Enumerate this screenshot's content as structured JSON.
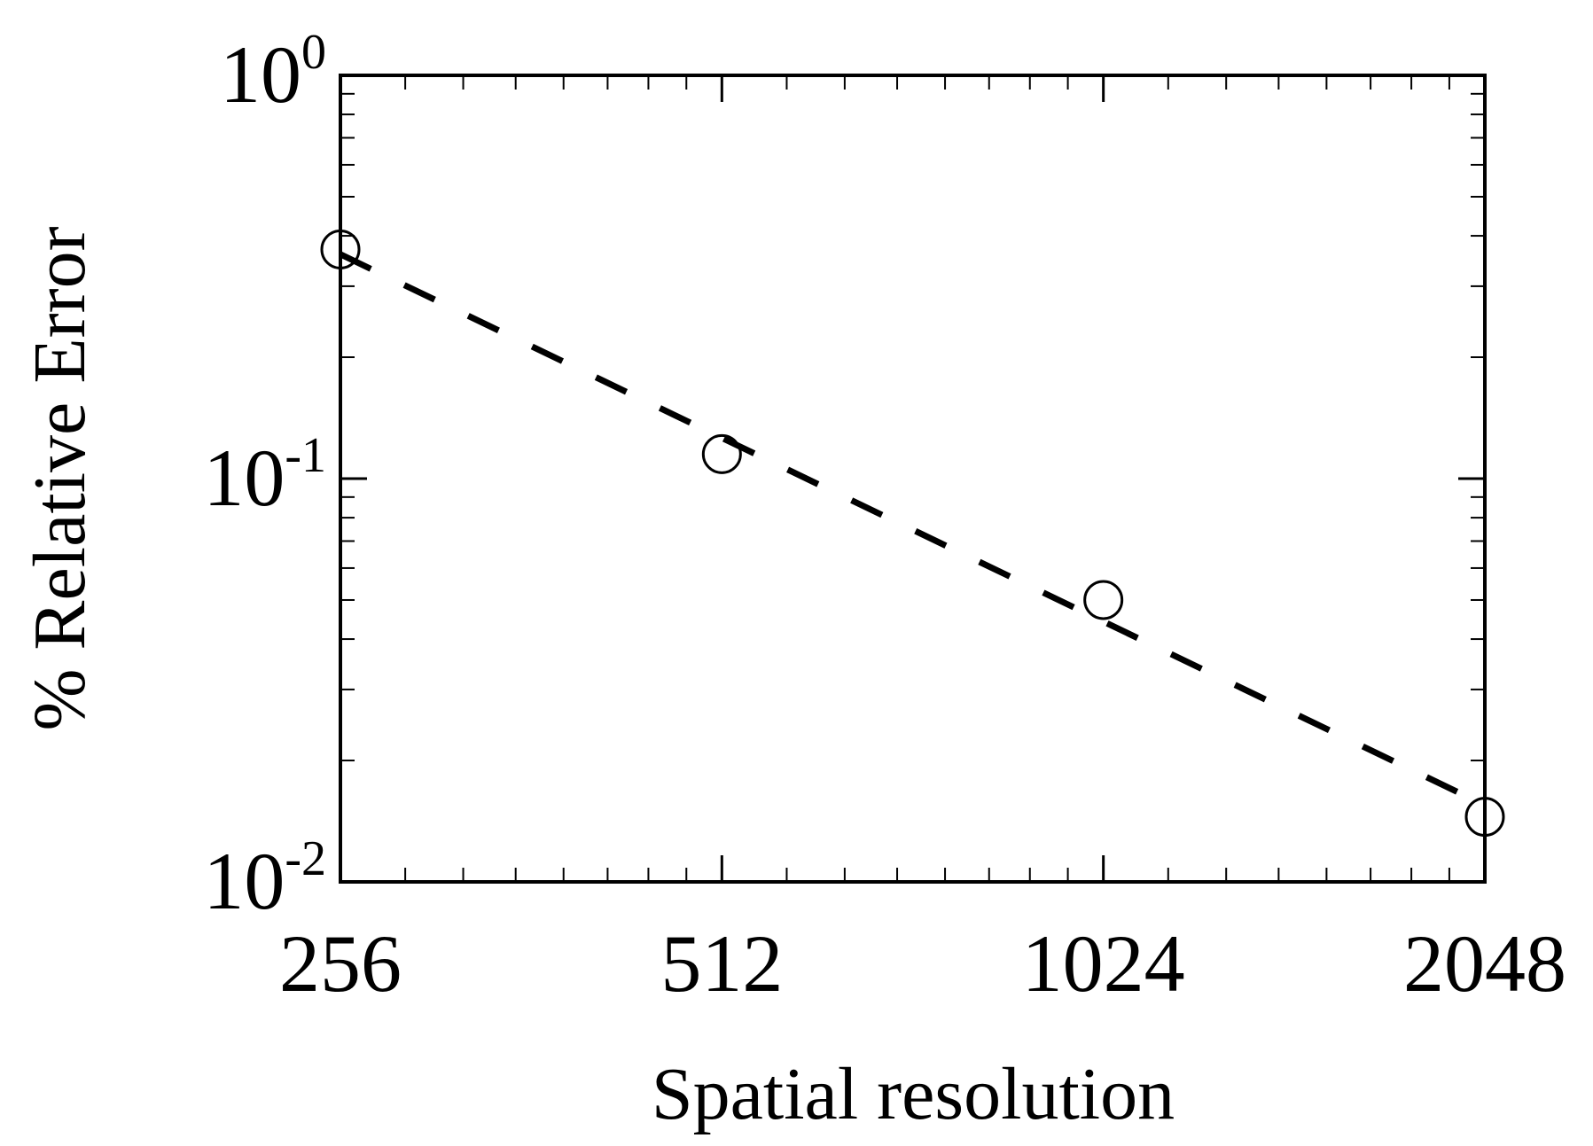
{
  "chart_data": {
    "type": "scatter",
    "title": "",
    "xlabel": "Spatial resolution",
    "ylabel": "% Relative Error",
    "x_scale": "log2",
    "y_scale": "log10",
    "xlim": [
      256,
      2048
    ],
    "ylim": [
      0.01,
      1
    ],
    "grid": false,
    "legend": "none",
    "x_ticks": [
      {
        "value": 256,
        "label": "256"
      },
      {
        "value": 512,
        "label": "512"
      },
      {
        "value": 1024,
        "label": "1024"
      },
      {
        "value": 2048,
        "label": "2048"
      }
    ],
    "y_ticks": [
      {
        "value": 0.01,
        "base": "10",
        "exp": "-2"
      },
      {
        "value": 0.1,
        "base": "10",
        "exp": "-1"
      },
      {
        "value": 1,
        "base": "10",
        "exp": "0"
      }
    ],
    "series": [
      {
        "marker": "open-circle",
        "color": "#000000",
        "x": [
          256,
          512,
          1024,
          2048
        ],
        "y": [
          0.37,
          0.115,
          0.05,
          0.0145
        ]
      },
      {
        "line": "dashed",
        "color": "#000000",
        "x": [
          256,
          2048
        ],
        "y": [
          0.36,
          0.0155
        ]
      }
    ]
  }
}
